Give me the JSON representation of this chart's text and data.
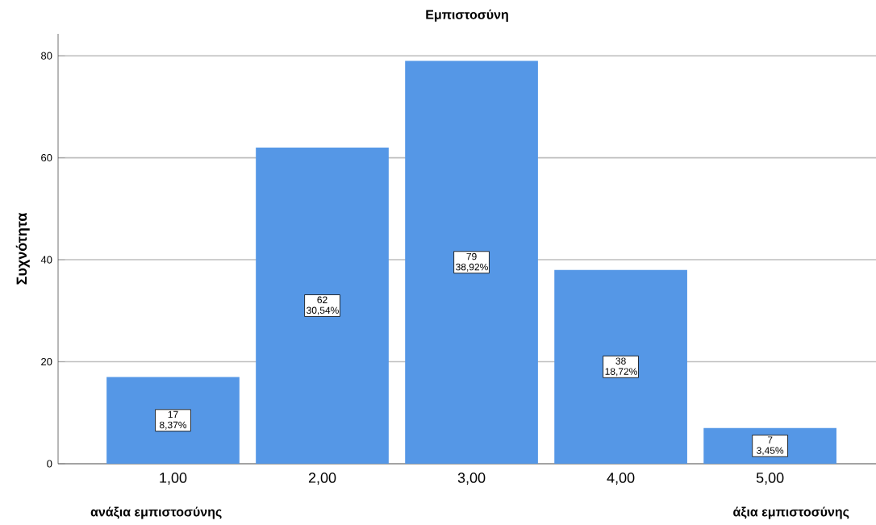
{
  "chart_data": {
    "type": "bar",
    "title": "Εμπιστοσύνη",
    "ylabel": "Συχνότητα",
    "categories": [
      "1,00",
      "2,00",
      "3,00",
      "4,00",
      "5,00"
    ],
    "values": [
      17,
      62,
      79,
      38,
      7
    ],
    "value_labels": [
      "17 8,37%",
      "62 30,54%",
      "79 38,92%",
      "38 18,72%",
      "7 3,45%"
    ],
    "color": "#5597e6",
    "ylim": [
      0,
      84.3
    ],
    "yticks": [
      0,
      20,
      40,
      60,
      80
    ],
    "grid": "y",
    "annotations": [
      "ανάξια εμπιστοσύνης",
      "άξια εμπιστοσύνης"
    ]
  }
}
